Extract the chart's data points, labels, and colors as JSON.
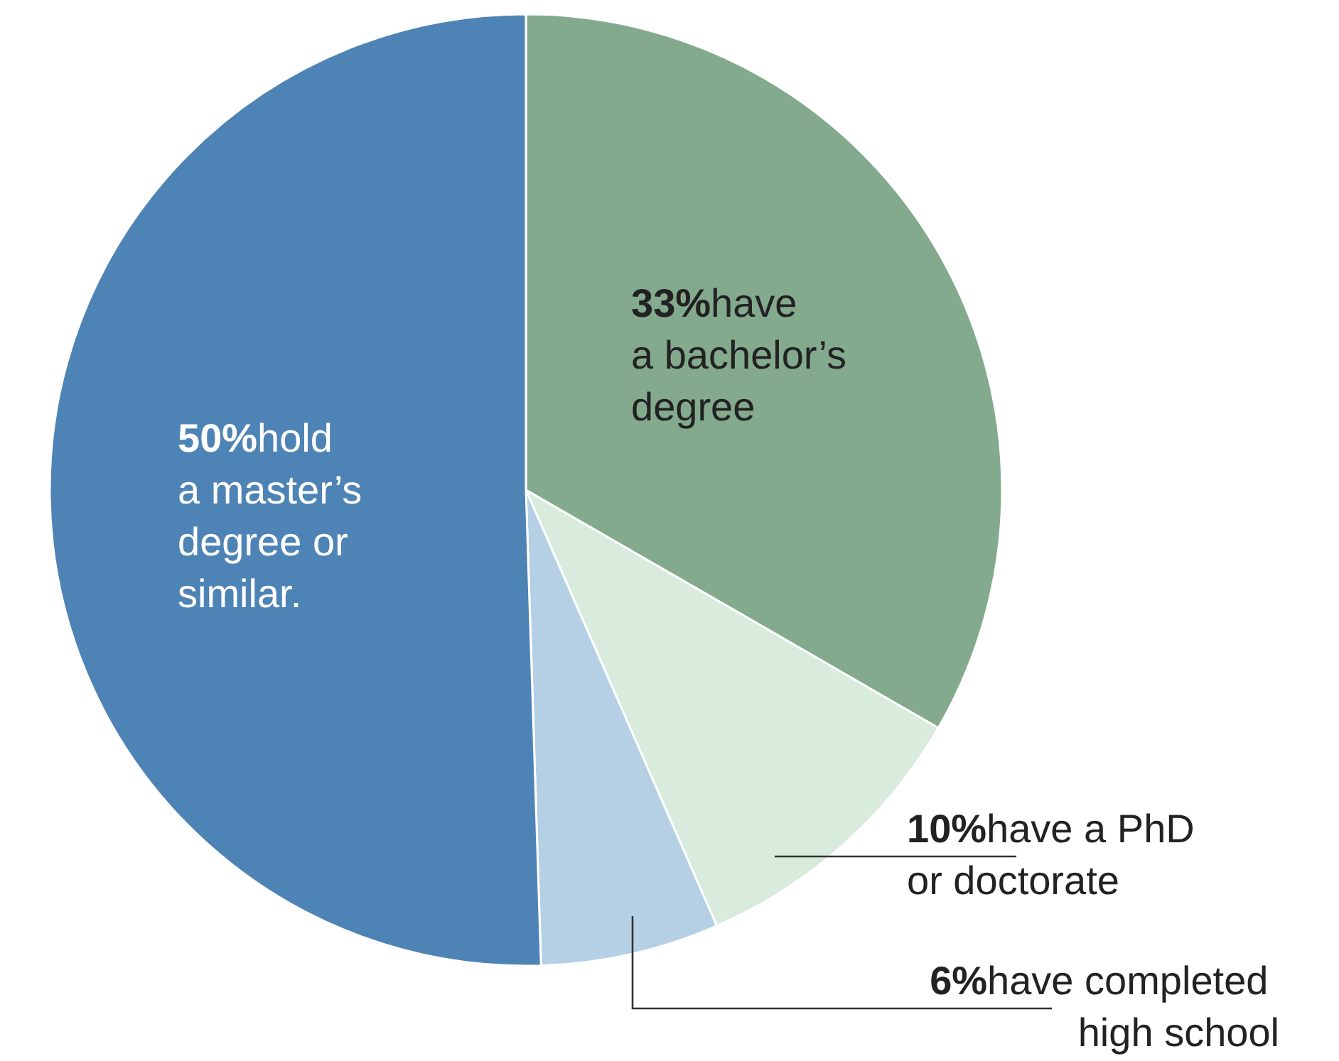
{
  "chart_data": {
    "type": "pie",
    "categories": [
      "have a bachelor’s degree",
      "have a PhD or doctorate",
      "have completed high school",
      "hold a master’s degree or similar."
    ],
    "values": [
      33,
      10,
      6,
      50
    ],
    "colors": [
      "#84aa8e",
      "#d8ebdc",
      "#b5d0e4",
      "#4e83b5"
    ],
    "value_labels": [
      "33%",
      "10%",
      "6%",
      "50%"
    ]
  }
}
